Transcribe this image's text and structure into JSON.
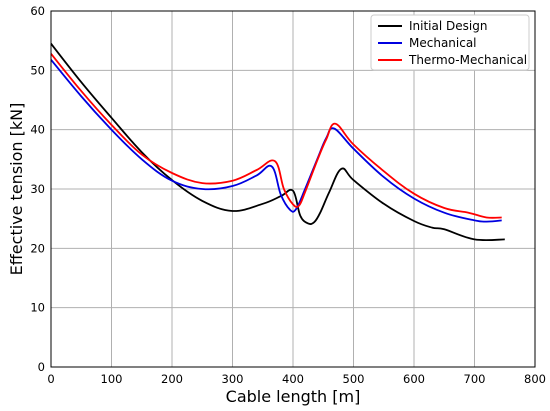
{
  "chart_data": {
    "type": "line",
    "xlabel": "Cable length [m]",
    "ylabel": "Effective tension [kN]",
    "xlim": [
      0,
      800
    ],
    "ylim": [
      0,
      60
    ],
    "xticks": [
      0,
      100,
      200,
      300,
      400,
      500,
      600,
      700,
      800
    ],
    "yticks": [
      0,
      10,
      20,
      30,
      40,
      50,
      60
    ],
    "grid": true,
    "legend_position": "top-right",
    "series": [
      {
        "name": "Initial Design",
        "color": "#000000",
        "x": [
          0,
          50,
          100,
          150,
          200,
          250,
          300,
          350,
          380,
          400,
          412,
          425,
          435,
          445,
          460,
          480,
          500,
          550,
          600,
          630,
          650,
          700,
          750
        ],
        "y": [
          54.5,
          48,
          42,
          36.2,
          31.5,
          28,
          26.3,
          27.5,
          28.8,
          29.7,
          25.5,
          24.2,
          24.4,
          26,
          29.5,
          33.4,
          31.5,
          27.5,
          24.6,
          23.5,
          23.2,
          21.5,
          21.5
        ]
      },
      {
        "name": "Mechanical",
        "color": "#0000e0",
        "x": [
          0,
          50,
          100,
          150,
          200,
          250,
          300,
          340,
          365,
          380,
          395,
          405,
          420,
          440,
          455,
          468,
          500,
          550,
          600,
          650,
          700,
          720,
          745
        ],
        "y": [
          51.8,
          45.6,
          40,
          35,
          31.4,
          30,
          30.5,
          32.3,
          33.8,
          29,
          26.5,
          26.6,
          30,
          35,
          38.6,
          40.2,
          36.8,
          32,
          28.4,
          26,
          24.7,
          24.5,
          24.7
        ]
      },
      {
        "name": "Thermo-Mechanical",
        "color": "#ff0000",
        "x": [
          0,
          50,
          100,
          150,
          200,
          250,
          300,
          340,
          370,
          385,
          400,
          410,
          420,
          440,
          455,
          470,
          500,
          550,
          600,
          650,
          690,
          720,
          745
        ],
        "y": [
          52.8,
          46.5,
          40.8,
          35.8,
          32.7,
          31,
          31.4,
          33.2,
          34.7,
          30,
          27.4,
          27.2,
          29.5,
          34.8,
          38.4,
          41,
          37.5,
          33,
          29.2,
          26.8,
          26,
          25.2,
          25.2
        ]
      }
    ]
  }
}
